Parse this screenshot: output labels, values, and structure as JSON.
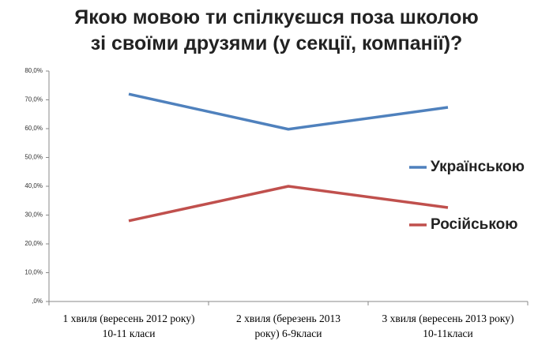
{
  "chart_data": {
    "type": "line",
    "title": "Якою мовою ти спілкуєшся поза школою\nзі своїми друзями (у секції, компанії)?",
    "categories": [
      "1 хвиля (вересень 2012 року)\n10-11 класи",
      "2 хвиля (березень 2013\nроку) 6-9класи",
      "3 хвиля (вересень 2013 року)\n10-11класи"
    ],
    "series": [
      {
        "name": "Українською",
        "color": "#4f81bd",
        "values": [
          72,
          59.8,
          67.4
        ]
      },
      {
        "name": "Російською",
        "color": "#c0504d",
        "values": [
          28,
          40,
          32.6
        ]
      }
    ],
    "ylim": [
      0,
      80
    ],
    "yticks": [
      {
        "value": 0,
        "label": ",0%"
      },
      {
        "value": 10,
        "label": "10,0%"
      },
      {
        "value": 20,
        "label": "20,0%"
      },
      {
        "value": 30,
        "label": "30,0%"
      },
      {
        "value": 40,
        "label": "40,0%"
      },
      {
        "value": 50,
        "label": "50,0%"
      },
      {
        "value": 60,
        "label": "60,0%"
      },
      {
        "value": 70,
        "label": "70,0%"
      },
      {
        "value": 80,
        "label": "80,0%"
      }
    ],
    "grid": false,
    "legend": "right"
  }
}
